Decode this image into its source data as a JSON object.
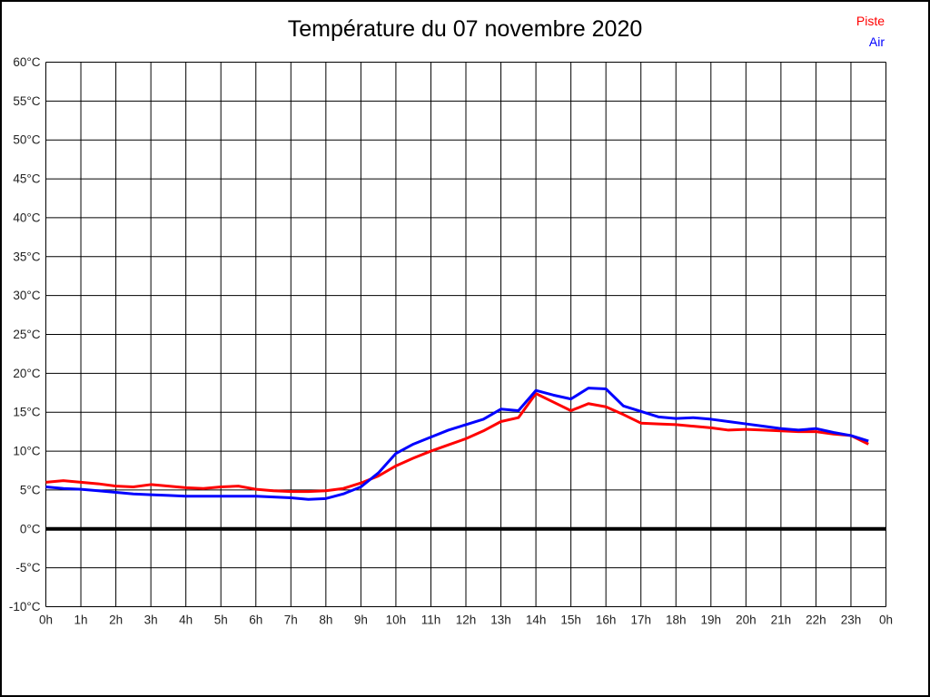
{
  "chart_data": {
    "type": "line",
    "title": "Température du 07 novembre 2020",
    "xlabel": "",
    "ylabel": "",
    "ylim": [
      -10,
      60
    ],
    "ytick_step": 5,
    "ytick_suffix": "°C",
    "xlim": [
      0,
      24
    ],
    "xtick_step": 1,
    "xtick_labels": [
      "0h",
      "1h",
      "2h",
      "3h",
      "4h",
      "5h",
      "6h",
      "7h",
      "8h",
      "9h",
      "10h",
      "11h",
      "12h",
      "13h",
      "14h",
      "15h",
      "16h",
      "17h",
      "18h",
      "19h",
      "20h",
      "21h",
      "22h",
      "23h",
      "0h"
    ],
    "grid": true,
    "grid_color": "#000000",
    "zero_line": true,
    "zero_line_color": "#000000",
    "legend_position": "top-right",
    "x_hours": [
      0,
      0.5,
      1,
      1.5,
      2,
      2.5,
      3,
      3.5,
      4,
      4.5,
      5,
      5.5,
      6,
      6.5,
      7,
      7.5,
      8,
      8.5,
      9,
      9.5,
      10,
      10.5,
      11,
      11.5,
      12,
      12.5,
      13,
      13.5,
      14,
      14.5,
      15,
      15.5,
      16,
      16.5,
      17,
      17.5,
      18,
      18.5,
      19,
      19.5,
      20,
      20.5,
      21,
      21.5,
      22,
      22.5,
      23,
      23.5
    ],
    "series": [
      {
        "name": "Piste",
        "color": "#ff0000",
        "values": [
          6.0,
          6.2,
          6.0,
          5.8,
          5.5,
          5.4,
          5.7,
          5.5,
          5.3,
          5.2,
          5.4,
          5.5,
          5.1,
          4.9,
          4.8,
          4.8,
          4.9,
          5.2,
          5.9,
          6.8,
          8.1,
          9.1,
          10.0,
          10.8,
          11.6,
          12.6,
          13.8,
          14.3,
          17.4,
          16.3,
          15.2,
          16.1,
          15.7,
          14.7,
          13.6,
          13.5,
          13.4,
          13.2,
          13.0,
          12.7,
          12.8,
          12.7,
          12.6,
          12.5,
          12.5,
          12.2,
          12.0,
          10.9
        ]
      },
      {
        "name": "Air",
        "color": "#0000ff",
        "values": [
          5.4,
          5.2,
          5.1,
          4.9,
          4.7,
          4.5,
          4.4,
          4.3,
          4.2,
          4.2,
          4.2,
          4.2,
          4.2,
          4.1,
          4.0,
          3.8,
          3.9,
          4.5,
          5.4,
          7.2,
          9.7,
          10.9,
          11.8,
          12.7,
          13.4,
          14.1,
          15.4,
          15.2,
          17.8,
          17.2,
          16.7,
          18.1,
          18.0,
          15.8,
          15.1,
          14.4,
          14.2,
          14.3,
          14.1,
          13.8,
          13.5,
          13.2,
          12.9,
          12.7,
          12.9,
          12.4,
          12.0,
          11.3
        ]
      }
    ]
  }
}
